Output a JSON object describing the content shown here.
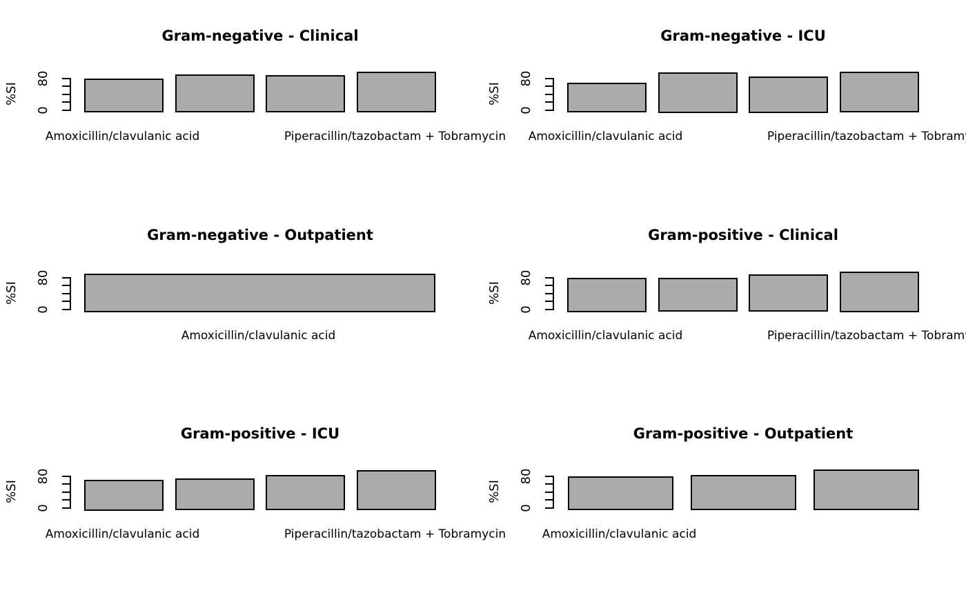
{
  "figure": {
    "background_color": "#ffffff",
    "bar_fill_color": "#ABABAB",
    "bar_border_color": "#000000",
    "text_color": "#000000",
    "grid": "off",
    "legend": "none",
    "layout": "3 rows x 2 columns of bar charts"
  },
  "axis_defaults": {
    "ylabel": "%SI",
    "yticks": [
      0,
      20,
      40,
      60,
      80
    ],
    "ytick_labels_visible": [
      "0",
      "80"
    ],
    "ylim_axis": [
      0,
      80
    ]
  },
  "chart_data": [
    {
      "type": "bar",
      "title": "Gram-negative - Clinical",
      "ylabel": "%SI",
      "ylim": [
        0,
        80
      ],
      "values": [
        79,
        89,
        87,
        97
      ],
      "x_labels": [
        {
          "text": "Amoxicillin/clavulanic acid",
          "bar_index": 0
        },
        {
          "text": "Piperacillin/tazobactam + Tobramycin",
          "bar_index": 3
        }
      ]
    },
    {
      "type": "bar",
      "title": "Gram-negative - ICU",
      "ylabel": "%SI",
      "ylim": [
        0,
        80
      ],
      "values": [
        68,
        95,
        85,
        97
      ],
      "x_labels": [
        {
          "text": "Amoxicillin/clavulanic acid",
          "bar_index": 0
        },
        {
          "text": "Piperacillin/tazobactam + Tobramycin",
          "bar_index": 3
        }
      ]
    },
    {
      "type": "bar",
      "title": "Gram-negative - Outpatient",
      "ylabel": "%SI",
      "ylim": [
        0,
        80
      ],
      "values": [
        90
      ],
      "x_labels": [
        {
          "text": "Amoxicillin/clavulanic acid",
          "bar_index": 0
        }
      ]
    },
    {
      "type": "bar",
      "title": "Gram-positive - Clinical",
      "ylabel": "%SI",
      "ylim": [
        0,
        80
      ],
      "values": [
        80,
        79,
        88,
        95
      ],
      "x_labels": [
        {
          "text": "Amoxicillin/clavulanic acid",
          "bar_index": 0
        },
        {
          "text": "Piperacillin/tazobactam + Tobramycin",
          "bar_index": 3
        }
      ]
    },
    {
      "type": "bar",
      "title": "Gram-positive - ICU",
      "ylabel": "%SI",
      "ylim": [
        0,
        80
      ],
      "values": [
        70,
        74,
        82,
        94
      ],
      "x_labels": [
        {
          "text": "Amoxicillin/clavulanic acid",
          "bar_index": 0
        },
        {
          "text": "Piperacillin/tazobactam + Tobramycin",
          "bar_index": 3
        }
      ]
    },
    {
      "type": "bar",
      "title": "Gram-positive - Outpatient",
      "ylabel": "%SI",
      "ylim": [
        0,
        80
      ],
      "values": [
        79,
        83,
        96
      ],
      "x_labels": [
        {
          "text": "Amoxicillin/clavulanic acid",
          "bar_index": 0
        }
      ]
    }
  ]
}
